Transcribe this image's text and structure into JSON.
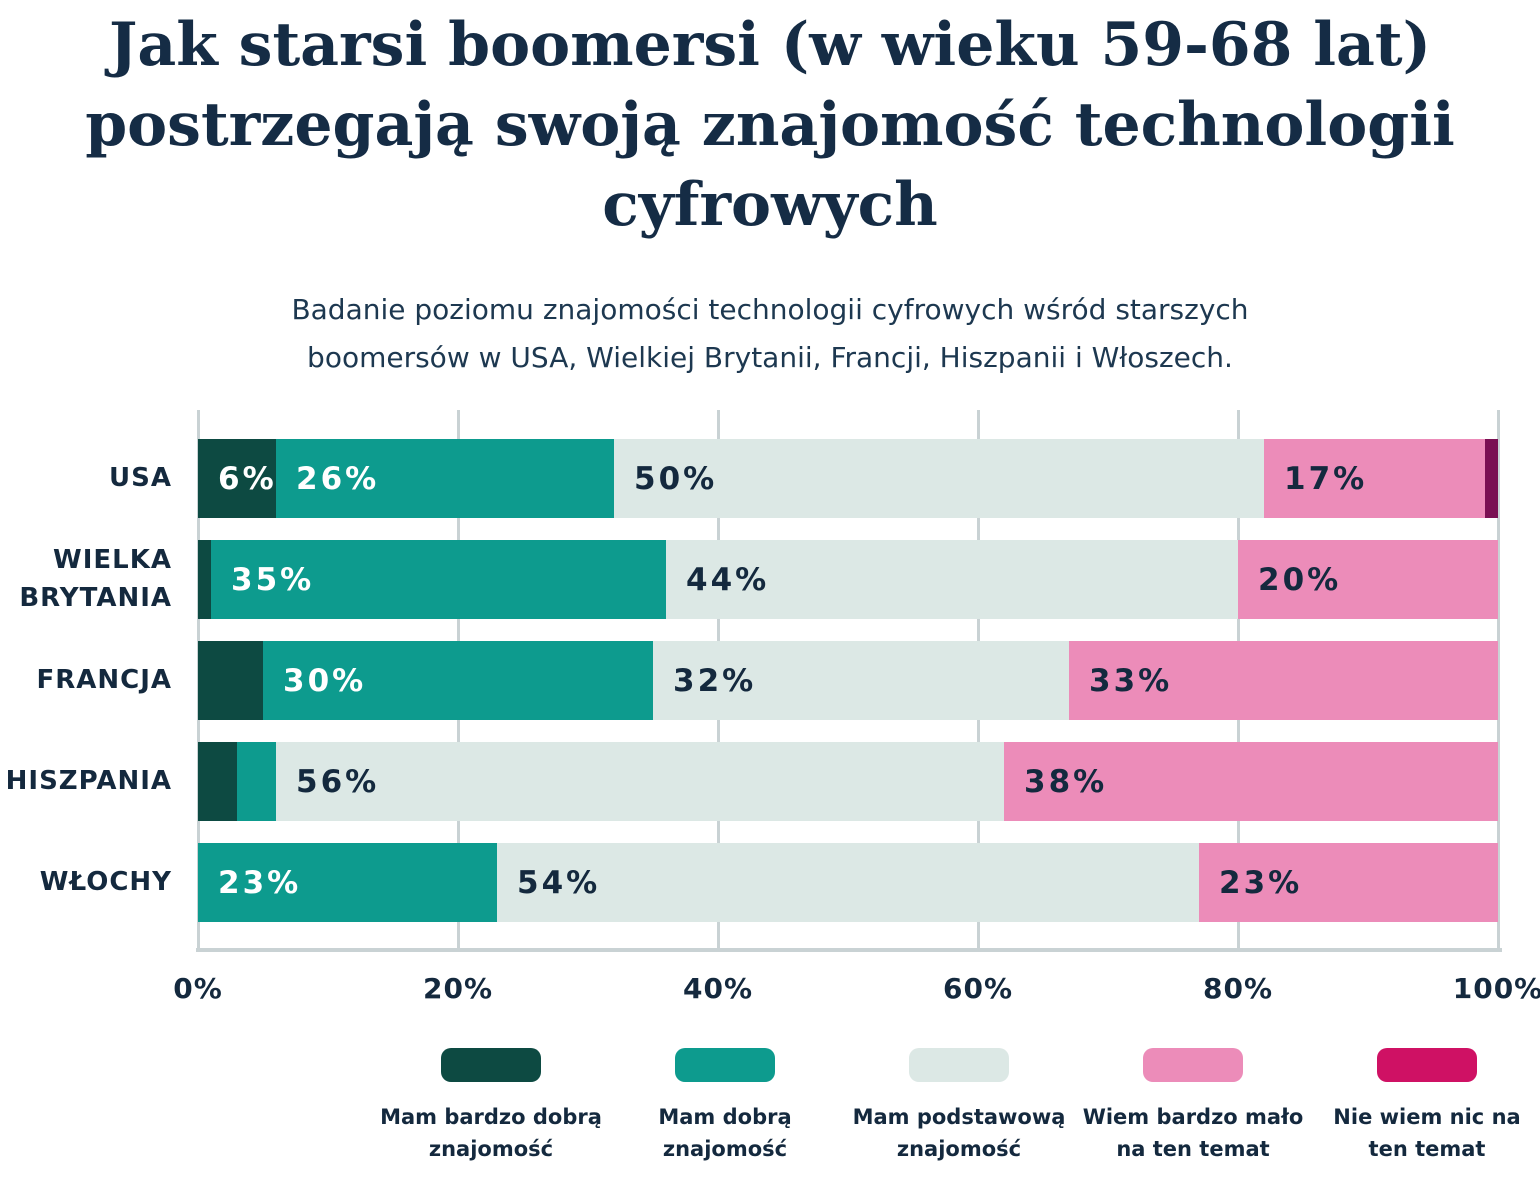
{
  "header": {
    "title": "Jak starsi boomersi (w wieku 59-68 lat) postrzegają swoją znajomość technologii cyfrowych",
    "title_lines": [
      "Jak starsi boomersi (w wieku 59-68 lat)",
      "postrzegają swoją znajomość technologii",
      "cyfrowych"
    ],
    "subtitle": "Badanie poziomu znajomości technologii cyfrowych wśród starszych boomersów w USA, Wielkiej Brytanii, Francji, Hiszpanii i Włoszech.",
    "subtitle_lines": [
      "Badanie poziomu znajomości technologii cyfrowych wśród starszych",
      "boomersów w USA, Wielkiej Brytanii, Francji, Hiszpanii i Włoszech."
    ]
  },
  "colors": {
    "very_good": "#0d4a42",
    "good": "#0d9b8e",
    "basic": "#dce8e5",
    "little": "#ec8cb9",
    "none": "#cf1164",
    "none_dark": "#7a1053",
    "navy": "#14293e",
    "grid": "#c9d2d4",
    "background": "#ffffff"
  },
  "chart_data": {
    "type": "bar",
    "orientation": "horizontal",
    "stacked": true,
    "title": "Jak starsi boomersi (w wieku 59-68 lat) postrzegają swoją znajomość technologii cyfrowych",
    "subtitle": "Badanie poziomu znajomości technologii cyfrowych wśród starszych boomersów w USA, Wielkiej Brytanii, Francji, Hiszpanii i Włoszech.",
    "categories": [
      "USA",
      "WIELKA BRYTANIA",
      "FRANCJA",
      "HISZPANIA",
      "WŁOCHY"
    ],
    "series": [
      {
        "name": "Mam bardzo dobrą znajomość",
        "color": "#0d4a42",
        "values": [
          6,
          1,
          5,
          3,
          0
        ]
      },
      {
        "name": "Mam dobrą znajomość",
        "color": "#0d9b8e",
        "values": [
          26,
          35,
          30,
          3,
          23
        ]
      },
      {
        "name": "Mam podstawową znajomość",
        "color": "#dce8e5",
        "values": [
          50,
          44,
          32,
          56,
          54
        ]
      },
      {
        "name": "Wiem bardzo mało na ten temat",
        "color": "#ec8cb9",
        "values": [
          17,
          20,
          33,
          38,
          23
        ]
      },
      {
        "name": "Nie wiem nic na ten temat",
        "color": "#cf1164",
        "values": [
          1,
          0,
          0,
          0,
          0
        ]
      }
    ],
    "xlim": [
      0,
      100
    ],
    "x_tick_labels": [
      "0%",
      "20%",
      "40%",
      "60%",
      "80%",
      "100%"
    ],
    "grid": "vertical",
    "legend_position": "bottom"
  },
  "rows": [
    {
      "category": "USA",
      "segments": [
        {
          "series": "Mam bardzo dobrą znajomość",
          "value": 6,
          "label": "6%",
          "color_key": "very_good"
        },
        {
          "series": "Mam dobrą znajomość",
          "value": 26,
          "label": "26%",
          "color_key": "good"
        },
        {
          "series": "Mam podstawową znajomość",
          "value": 50,
          "label": "50%",
          "color_key": "basic"
        },
        {
          "series": "Wiem bardzo mało na ten temat",
          "value": 17,
          "label": "17%",
          "color_key": "little"
        },
        {
          "series": "Nie wiem nic na ten temat",
          "value": 1,
          "label": "",
          "color_key": "none_dark"
        }
      ]
    },
    {
      "category": "WIELKA BRYTANIA",
      "segments": [
        {
          "series": "Mam bardzo dobrą znajomość",
          "value": 1,
          "label": "",
          "color_key": "very_good"
        },
        {
          "series": "Mam dobrą znajomość",
          "value": 35,
          "label": "35%",
          "color_key": "good"
        },
        {
          "series": "Mam podstawową znajomość",
          "value": 44,
          "label": "44%",
          "color_key": "basic"
        },
        {
          "series": "Wiem bardzo mało na ten temat",
          "value": 20,
          "label": "20%",
          "color_key": "little"
        },
        {
          "series": "Nie wiem nic na ten temat",
          "value": 0,
          "label": "",
          "color_key": "none"
        }
      ]
    },
    {
      "category": "FRANCJA",
      "segments": [
        {
          "series": "Mam bardzo dobrą znajomość",
          "value": 5,
          "label": "",
          "color_key": "very_good"
        },
        {
          "series": "Mam dobrą znajomość",
          "value": 30,
          "label": "30%",
          "color_key": "good"
        },
        {
          "series": "Mam podstawową znajomość",
          "value": 32,
          "label": "32%",
          "color_key": "basic"
        },
        {
          "series": "Wiem bardzo mało na ten temat",
          "value": 33,
          "label": "33%",
          "color_key": "little"
        },
        {
          "series": "Nie wiem nic na ten temat",
          "value": 0,
          "label": "",
          "color_key": "none"
        }
      ]
    },
    {
      "category": "HISZPANIA",
      "segments": [
        {
          "series": "Mam bardzo dobrą znajomość",
          "value": 3,
          "label": "",
          "color_key": "very_good"
        },
        {
          "series": "Mam dobrą znajomość",
          "value": 3,
          "label": "",
          "color_key": "good"
        },
        {
          "series": "Mam podstawową znajomość",
          "value": 56,
          "label": "56%",
          "color_key": "basic"
        },
        {
          "series": "Wiem bardzo mało na ten temat",
          "value": 38,
          "label": "38%",
          "color_key": "little"
        },
        {
          "series": "Nie wiem nic na ten temat",
          "value": 0,
          "label": "",
          "color_key": "none"
        }
      ]
    },
    {
      "category": "WŁOCHY",
      "segments": [
        {
          "series": "Mam bardzo dobrą znajomość",
          "value": 0,
          "label": "",
          "color_key": "very_good"
        },
        {
          "series": "Mam dobrą znajomość",
          "value": 23,
          "label": "23%",
          "color_key": "good"
        },
        {
          "series": "Mam podstawową znajomość",
          "value": 54,
          "label": "54%",
          "color_key": "basic"
        },
        {
          "series": "Wiem bardzo mało na ten temat",
          "value": 23,
          "label": "23%",
          "color_key": "little"
        },
        {
          "series": "Nie wiem nic na ten temat",
          "value": 0,
          "label": "",
          "color_key": "none"
        }
      ]
    }
  ],
  "axis": {
    "ticks": [
      "0%",
      "20%",
      "40%",
      "60%",
      "80%",
      "100%"
    ]
  },
  "legend": {
    "items": [
      {
        "color_key": "very_good",
        "line1": "Mam bardzo dobrą",
        "line2": "znajomość"
      },
      {
        "color_key": "good",
        "line1": "Mam dobrą",
        "line2": "znajomość"
      },
      {
        "color_key": "basic",
        "line1": "Mam podstawową",
        "line2": "znajomość"
      },
      {
        "color_key": "little",
        "line1": "Wiem bardzo mało",
        "line2": "na ten temat"
      },
      {
        "color_key": "none",
        "line1": "Nie wiem nic na",
        "line2": "ten temat"
      }
    ]
  }
}
